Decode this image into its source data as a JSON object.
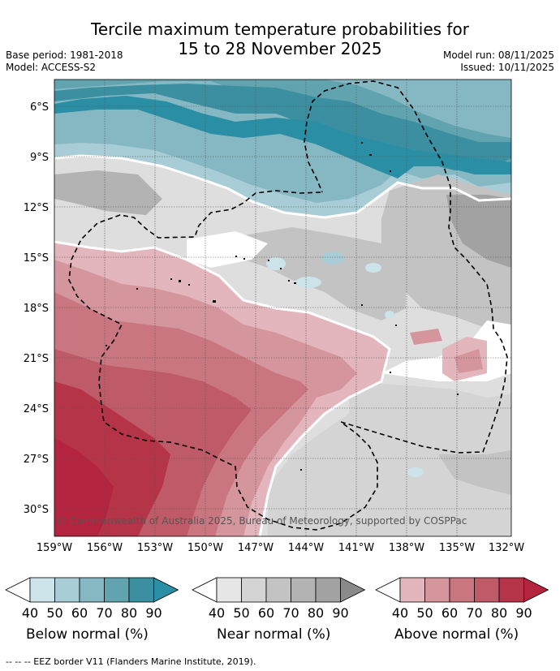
{
  "title_line1": "Tercile maximum temperature probabilities for",
  "title_line2": "15 to 28 November 2025",
  "base_period": "Base period: 1981-2018",
  "model": "Model: ACCESS-S2",
  "model_run": "Model run: 08/11/2025",
  "issued": "Issued: 10/11/2025",
  "lat_labels": [
    "6°S",
    "9°S",
    "12°S",
    "15°S",
    "18°S",
    "21°S",
    "24°S",
    "27°S",
    "30°S"
  ],
  "lon_labels": [
    "159°W",
    "156°W",
    "153°W",
    "150°W",
    "147°W",
    "144°W",
    "141°W",
    "138°W",
    "135°W",
    "132°W"
  ],
  "copyright": "© Commonwealth of Australia 2025, Bureau of Meteorology, supported by COSPPac",
  "colorbars": [
    {
      "name": "below",
      "title": "Below normal (%)",
      "ticks": [
        "40",
        "50",
        "60",
        "70",
        "80",
        "90"
      ],
      "colors": [
        "#ffffff",
        "#cde3ea",
        "#a9cdd6",
        "#86b8c3",
        "#62a3b0",
        "#3c8fa0",
        "#2a8ea4"
      ]
    },
    {
      "name": "near",
      "title": "Near normal (%)",
      "ticks": [
        "40",
        "50",
        "60",
        "70",
        "80",
        "90"
      ],
      "colors": [
        "#ffffff",
        "#e6e6e6",
        "#d4d4d4",
        "#c3c3c3",
        "#b3b3b3",
        "#a2a2a2",
        "#8a8a8a"
      ]
    },
    {
      "name": "above",
      "title": "Above normal (%)",
      "ticks": [
        "40",
        "50",
        "60",
        "70",
        "80",
        "90"
      ],
      "colors": [
        "#ffffff",
        "#e2b6bc",
        "#d5959d",
        "#c97680",
        "#bf5b68",
        "#b63447",
        "#b5243e"
      ]
    }
  ],
  "footer": "-- -- -- EEZ border V11 (Flanders Marine Institute, 2019)."
}
